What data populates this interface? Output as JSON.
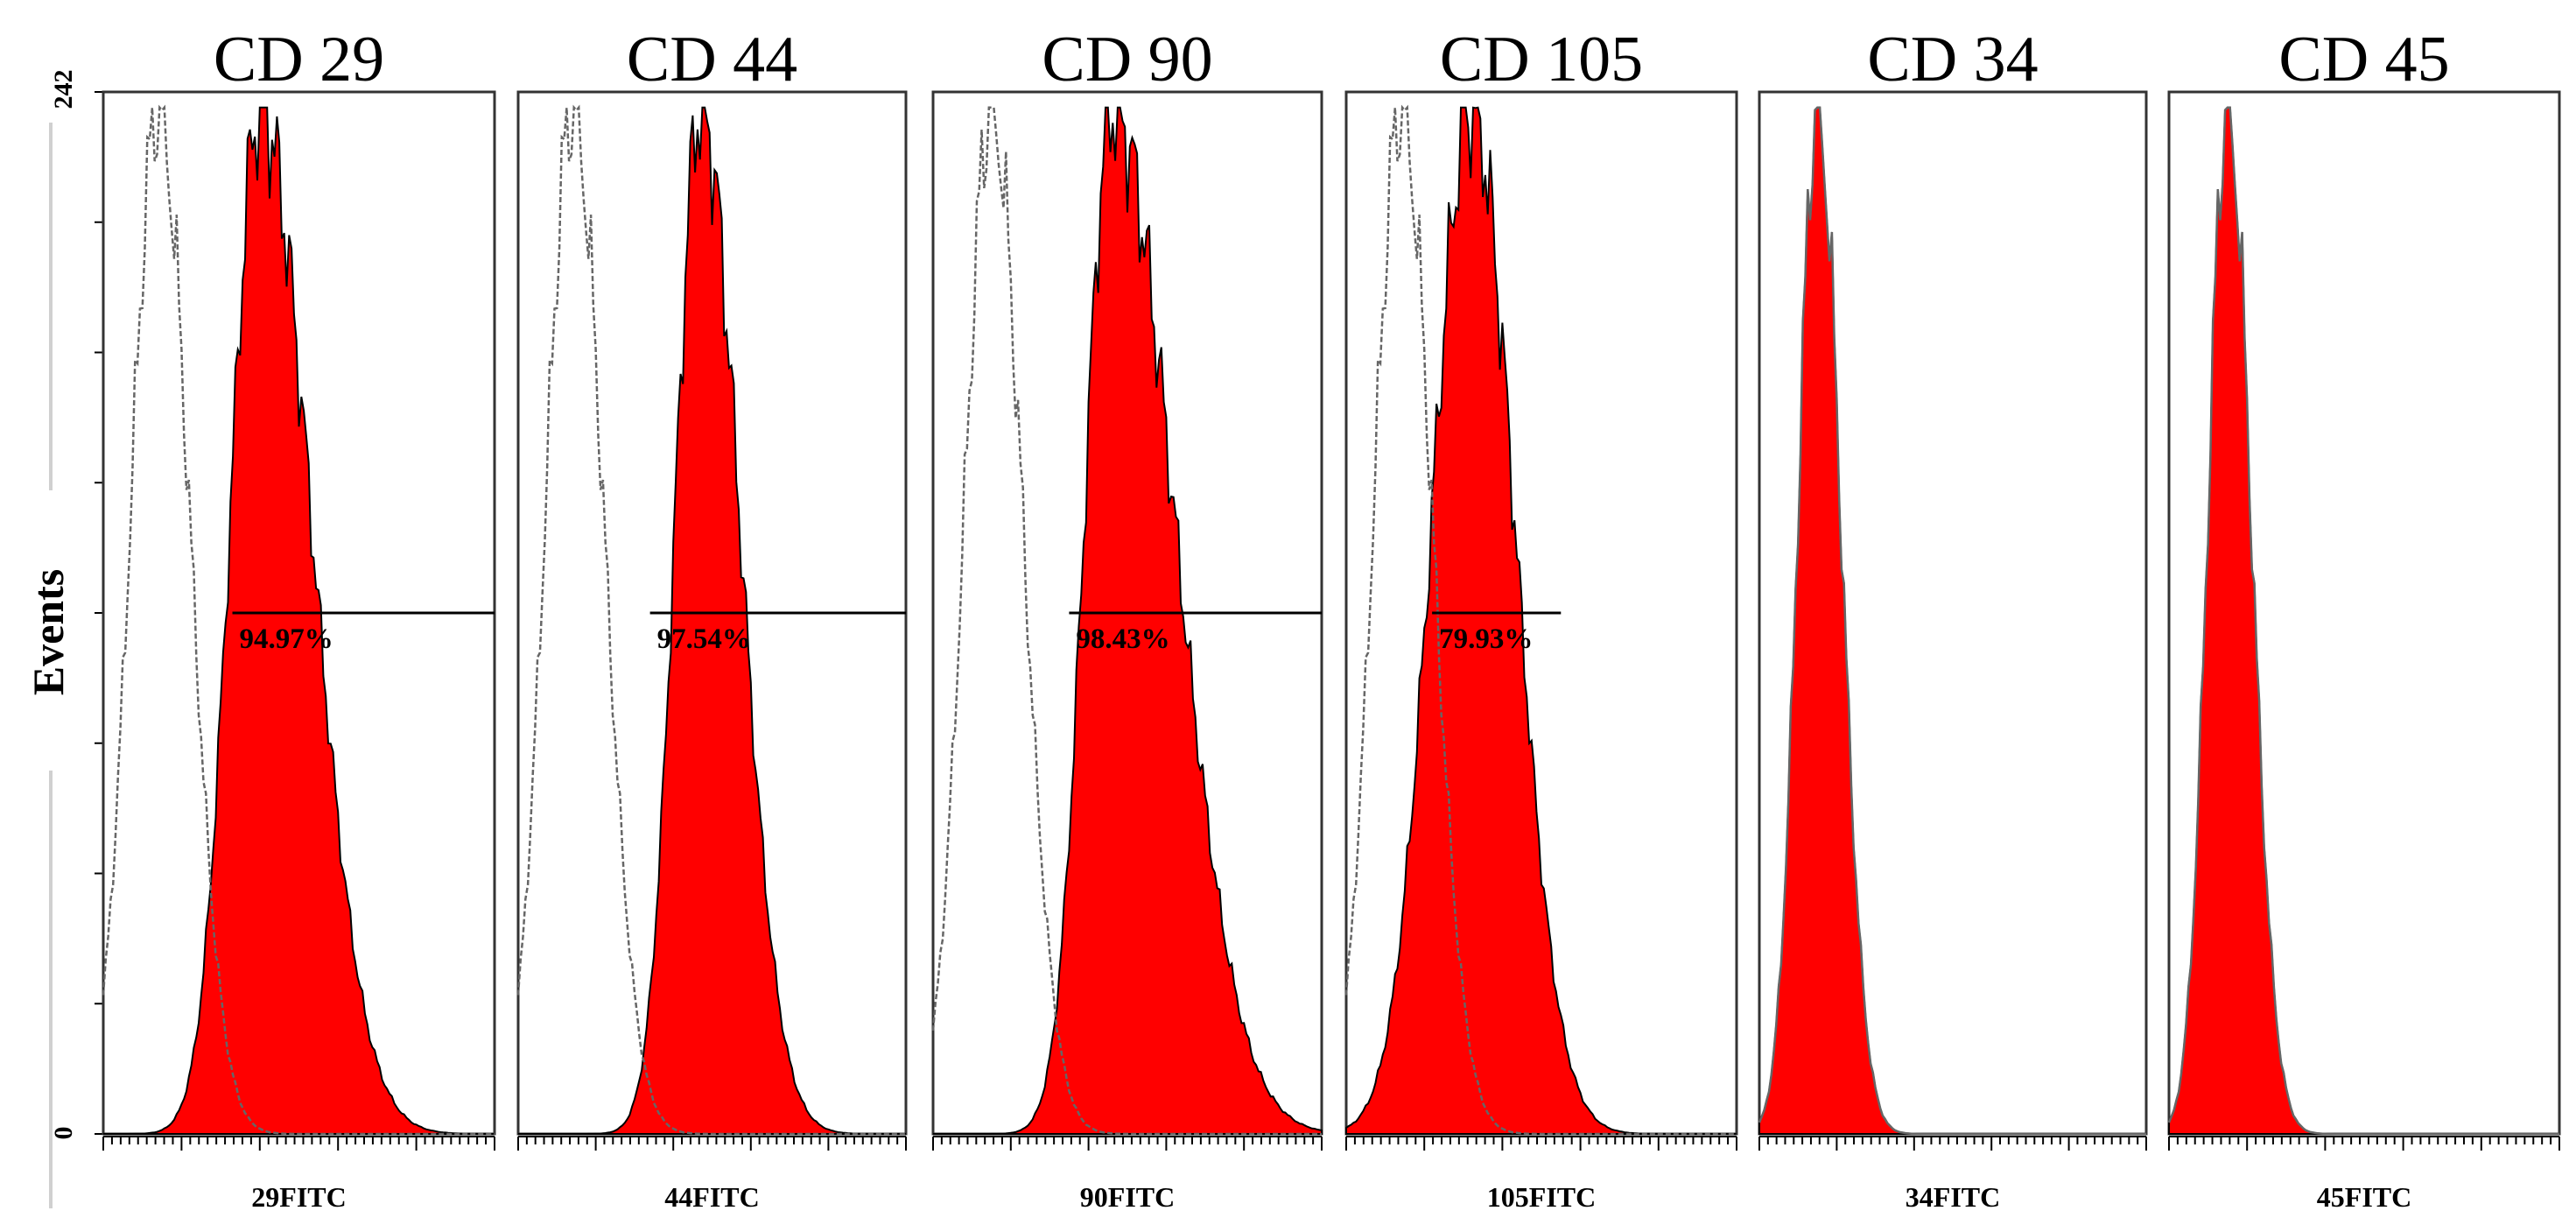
{
  "chart_data": {
    "type": "histogram",
    "ylabel": "Events",
    "ylim": [
      0,
      242
    ],
    "ytick_labels": [
      "0",
      "242"
    ],
    "ytick_count": 9,
    "colors": {
      "stained": "#ff0000",
      "outline": "#000000",
      "isotype": "#666666"
    },
    "panels": [
      {
        "title": "CD 29",
        "xlabel": "29FITC",
        "gate_label": "94.97%",
        "gate": [
          0.33,
          1.0
        ],
        "stained": {
          "mode": 0.4,
          "sigma_left": 0.075,
          "sigma_right": 0.13
        },
        "isotype": {
          "mode": 0.14,
          "sigma_left": 0.07,
          "sigma_right": 0.08
        }
      },
      {
        "title": "CD 44",
        "xlabel": "44FITC",
        "gate_label": "97.54%",
        "gate": [
          0.34,
          1.0
        ],
        "stained": {
          "mode": 0.47,
          "sigma_left": 0.065,
          "sigma_right": 0.1
        },
        "isotype": {
          "mode": 0.14,
          "sigma_left": 0.07,
          "sigma_right": 0.08
        }
      },
      {
        "title": "CD 90",
        "xlabel": "90FITC",
        "gate_label": "98.43%",
        "gate": [
          0.35,
          1.0
        ],
        "stained": {
          "mode": 0.46,
          "sigma_left": 0.07,
          "sigma_right": 0.16
        },
        "isotype": {
          "mode": 0.15,
          "sigma_left": 0.07,
          "sigma_right": 0.08
        }
      },
      {
        "title": "CD 105",
        "xlabel": "105FITC",
        "gate_label": "79.93%",
        "gate": [
          0.22,
          0.55
        ],
        "stained": {
          "mode": 0.32,
          "sigma_left": 0.1,
          "sigma_right": 0.11
        },
        "isotype": {
          "mode": 0.14,
          "sigma_left": 0.07,
          "sigma_right": 0.08
        }
      },
      {
        "title": "CD 34",
        "xlabel": "34FITC",
        "gate_label": null,
        "gate": null,
        "stained": {
          "mode": 0.15,
          "sigma_left": 0.05,
          "sigma_right": 0.06
        },
        "isotype": {
          "mode": 0.15,
          "sigma_left": 0.05,
          "sigma_right": 0.06
        }
      },
      {
        "title": "CD 45",
        "xlabel": "45FITC",
        "gate_label": null,
        "gate": null,
        "stained": {
          "mode": 0.15,
          "sigma_left": 0.05,
          "sigma_right": 0.06
        },
        "isotype": {
          "mode": 0.15,
          "sigma_left": 0.05,
          "sigma_right": 0.06
        }
      }
    ]
  }
}
